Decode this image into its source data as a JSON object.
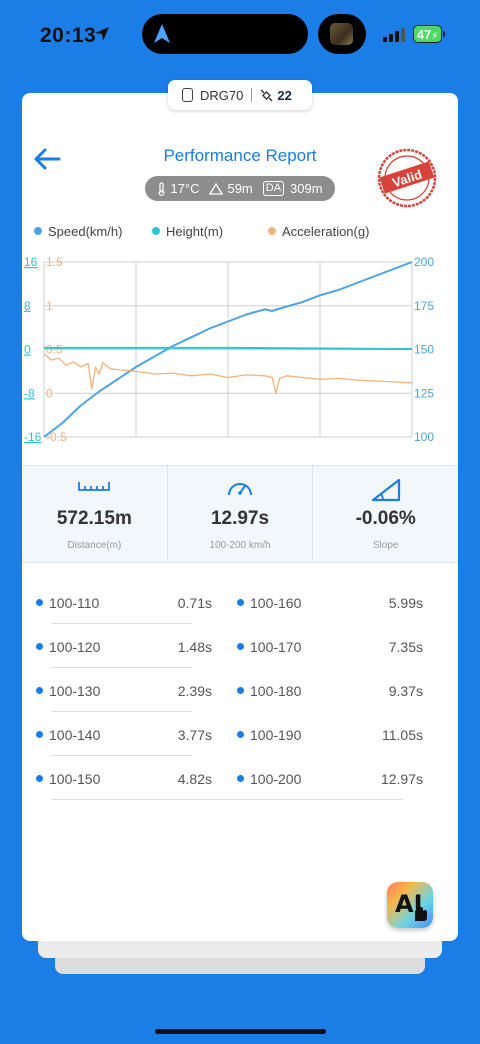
{
  "status_bar": {
    "time": "20:13",
    "battery": "47"
  },
  "device": {
    "name": "DRG70",
    "satellites": "22"
  },
  "header": {
    "title": "Performance Report",
    "temperature": "17°C",
    "altitude": "59m",
    "da_label": "DA",
    "density_altitude": "309m",
    "stamp_text": "Valid"
  },
  "chart_data": {
    "type": "line",
    "series": [
      {
        "name": "Speed(km/h)",
        "color": "#4da3e8",
        "axis": "right",
        "x": [
          0,
          0.05,
          0.1,
          0.15,
          0.2,
          0.25,
          0.3,
          0.35,
          0.4,
          0.45,
          0.5,
          0.55,
          0.6,
          0.62,
          0.65,
          0.7,
          0.75,
          0.8,
          0.85,
          0.9,
          0.95,
          1.0
        ],
        "values": [
          100,
          108,
          118,
          126,
          133,
          140,
          146,
          152,
          157,
          162,
          166,
          170,
          173,
          172,
          174,
          177,
          181,
          184,
          188,
          192,
          196,
          200
        ]
      },
      {
        "name": "Height(m)",
        "color": "#2ec5d3",
        "axis": "left-outer",
        "x": [
          0,
          0.5,
          1.0
        ],
        "values": [
          0.3,
          0.3,
          0.1
        ]
      },
      {
        "name": "Acceleration(g)",
        "color": "#f2b27c",
        "axis": "left-inner",
        "x": [
          0,
          0.02,
          0.04,
          0.06,
          0.08,
          0.1,
          0.12,
          0.13,
          0.14,
          0.15,
          0.16,
          0.18,
          0.2,
          0.25,
          0.3,
          0.35,
          0.4,
          0.45,
          0.5,
          0.55,
          0.6,
          0.62,
          0.63,
          0.64,
          0.66,
          0.7,
          0.75,
          0.8,
          0.85,
          0.9,
          0.95,
          1.0
        ],
        "values": [
          0.45,
          0.38,
          0.4,
          0.32,
          0.36,
          0.3,
          0.34,
          0.05,
          0.3,
          0.22,
          0.35,
          0.28,
          0.27,
          0.25,
          0.22,
          0.23,
          0.2,
          0.22,
          0.18,
          0.21,
          0.2,
          0.18,
          0.0,
          0.17,
          0.2,
          0.18,
          0.16,
          0.17,
          0.15,
          0.14,
          0.13,
          0.12
        ]
      }
    ],
    "axes": {
      "left_outer": {
        "color": "#2ec5d3",
        "ticks": [
          "16",
          "8",
          "0",
          "-8",
          "-16"
        ],
        "range": [
          -16,
          16
        ]
      },
      "left_inner": {
        "color": "#f2b27c",
        "ticks": [
          "1.5",
          "1",
          "0.5",
          "0",
          "-0.5"
        ],
        "range": [
          -0.5,
          1.5
        ]
      },
      "right": {
        "color": "#4da3e8",
        "ticks": [
          "200",
          "175",
          "150",
          "125",
          "100"
        ],
        "range": [
          100,
          200
        ]
      }
    },
    "grid": true,
    "legend": "top"
  },
  "stats": [
    {
      "value": "572.15m",
      "label": "Distance(m)",
      "icon": "ruler-icon"
    },
    {
      "value": "12.97s",
      "label": "100-200 km/h",
      "icon": "speedometer-icon"
    },
    {
      "value": "-0.06%",
      "label": "Slope",
      "icon": "slope-icon"
    }
  ],
  "intervals": [
    {
      "range": "100-110",
      "time": "0.71s"
    },
    {
      "range": "100-160",
      "time": "5.99s"
    },
    {
      "range": "100-120",
      "time": "1.48s"
    },
    {
      "range": "100-170",
      "time": "7.35s"
    },
    {
      "range": "100-130",
      "time": "2.39s"
    },
    {
      "range": "100-180",
      "time": "9.37s"
    },
    {
      "range": "100-140",
      "time": "3.77s"
    },
    {
      "range": "100-190",
      "time": "11.05s"
    },
    {
      "range": "100-150",
      "time": "4.82s"
    },
    {
      "range": "100-200",
      "time": "12.97s"
    }
  ],
  "ai_button": {
    "label": "AI"
  }
}
